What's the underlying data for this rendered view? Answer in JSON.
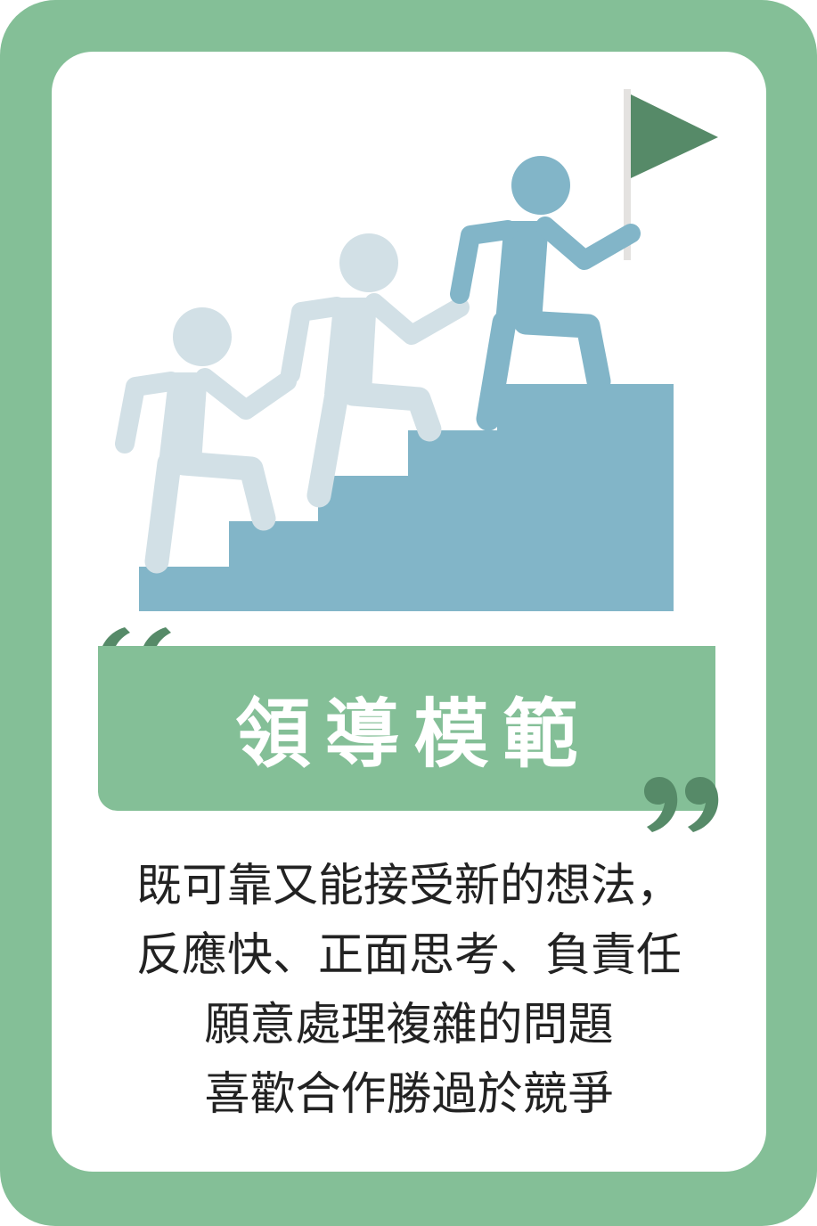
{
  "title": "領導模範",
  "description_lines": [
    "既可靠又能接受新的想法，",
    "反應快、正面思考、負責任",
    "願意處理複雜的問題",
    "喜歡合作勝過於競爭"
  ],
  "colors": {
    "frame_green": "#84bf97",
    "quote_green": "#568a68",
    "flag_green": "#568a68",
    "stair_blue": "#82b5c8",
    "leader_blue": "#82b5c8",
    "follower_light": "#d2e0e6",
    "text_dark": "#222222"
  },
  "icons": [
    "stairs",
    "leader-figure",
    "follower-figure",
    "flag-icon",
    "open-quote-icon",
    "close-quote-icon"
  ]
}
